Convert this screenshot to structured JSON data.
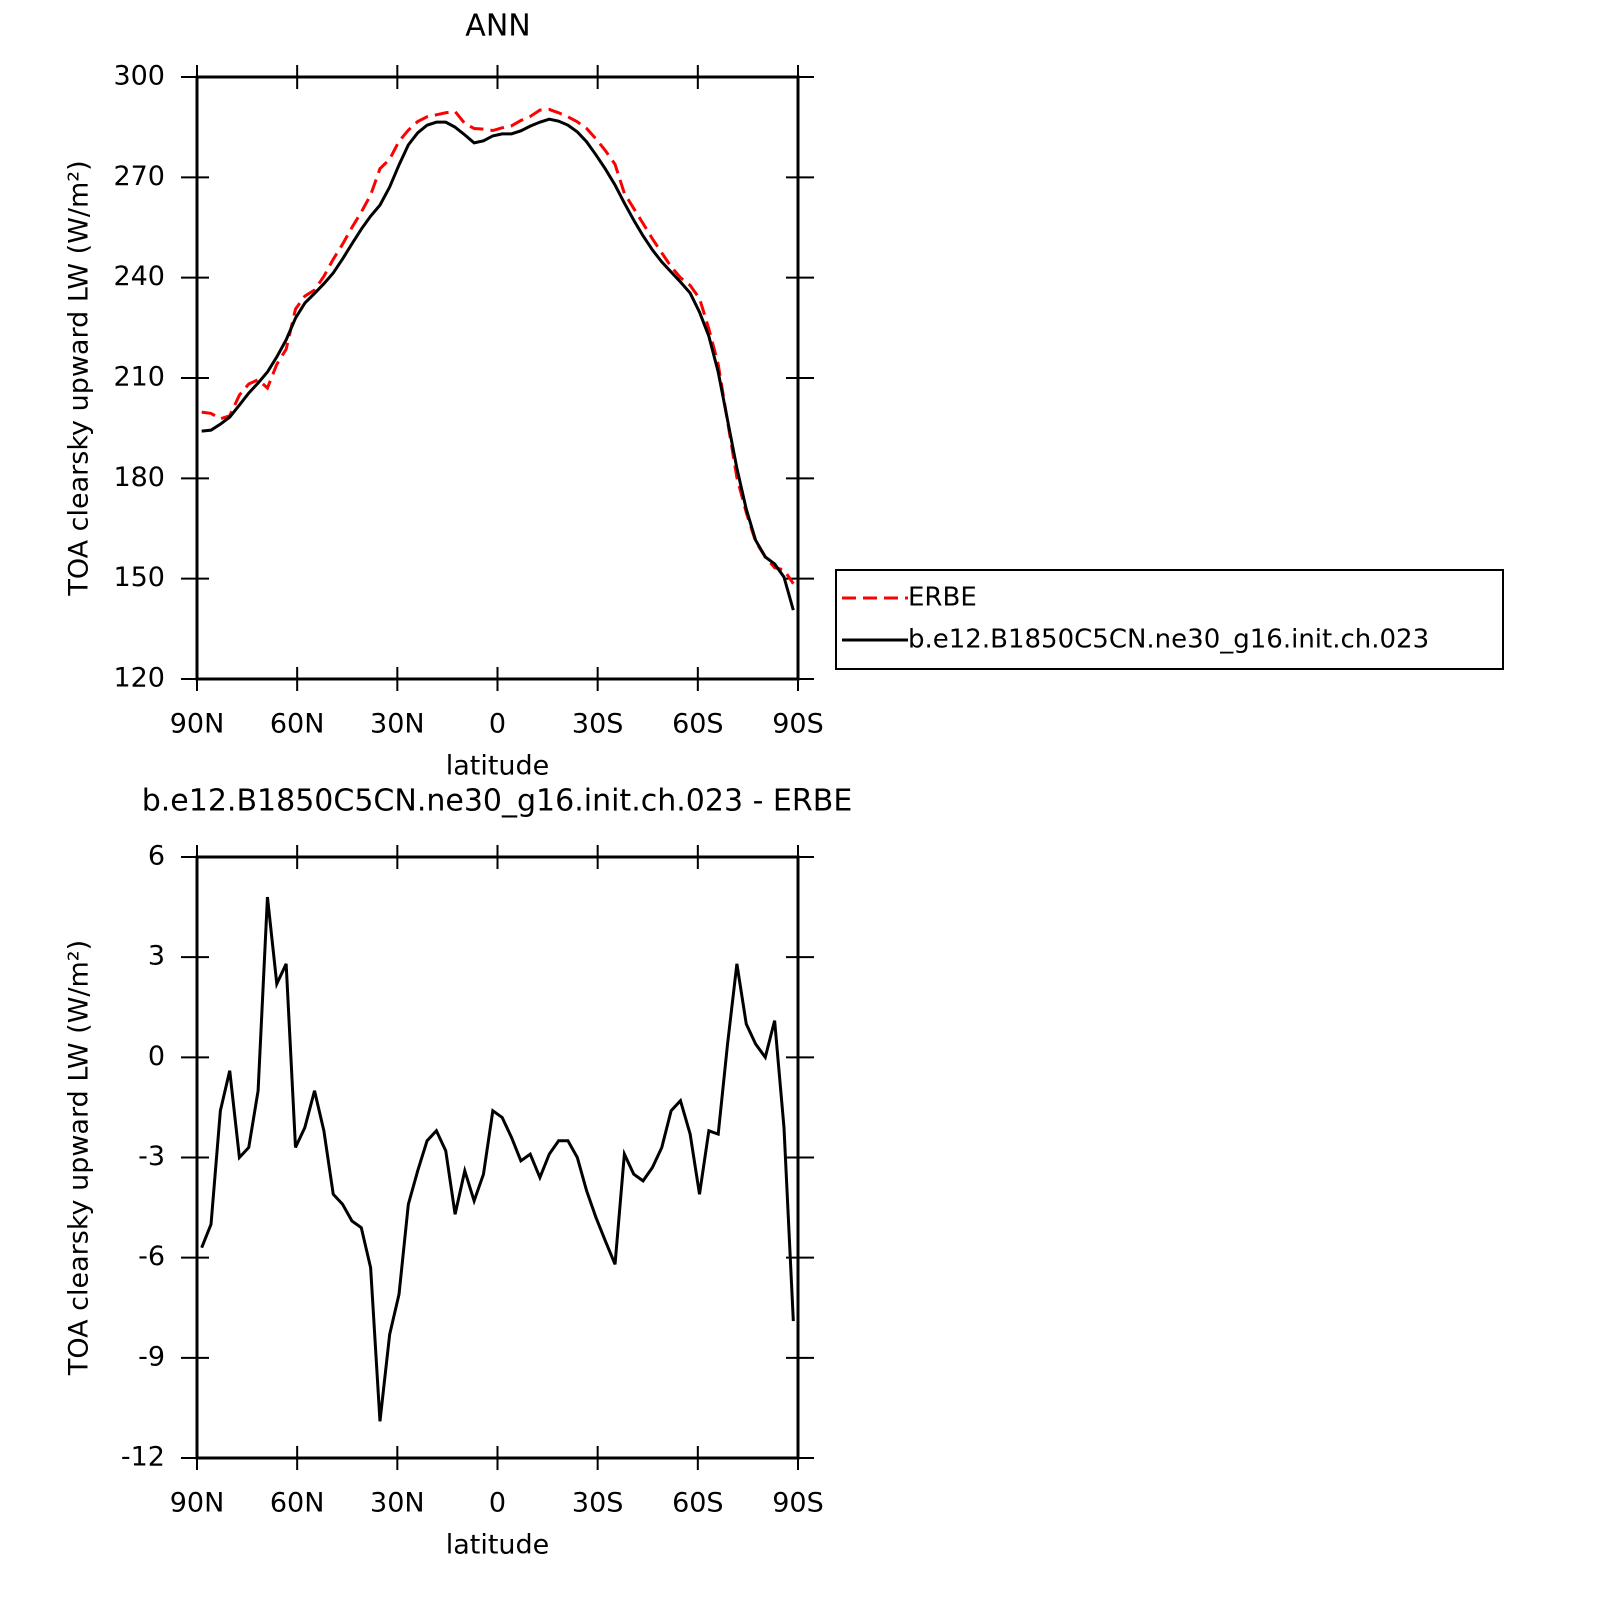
{
  "chart_data": [
    {
      "type": "line",
      "title": "ANN",
      "xlabel": "latitude",
      "ylabel": "TOA clearsky upward LW (W/m²)",
      "x": [
        88.6,
        85.8,
        83.0,
        80.2,
        77.3,
        74.5,
        71.7,
        68.9,
        66.1,
        63.3,
        60.5,
        57.7,
        54.8,
        52.0,
        49.2,
        46.4,
        43.6,
        40.8,
        38.0,
        35.2,
        32.3,
        29.5,
        26.7,
        23.9,
        21.1,
        18.3,
        15.5,
        12.7,
        9.8,
        7.0,
        4.2,
        1.4,
        -1.4,
        -4.2,
        -7.0,
        -9.8,
        -12.7,
        -15.5,
        -18.3,
        -21.1,
        -23.9,
        -26.7,
        -29.5,
        -32.3,
        -35.2,
        -38.0,
        -40.8,
        -43.6,
        -46.4,
        -49.2,
        -52.0,
        -54.8,
        -57.7,
        -60.5,
        -63.3,
        -66.1,
        -68.9,
        -71.7,
        -74.5,
        -77.3,
        -80.2,
        -83.0,
        -85.8,
        -88.6
      ],
      "xlim": [
        90,
        -90
      ],
      "xticks": [
        {
          "value": 90,
          "label": "90N"
        },
        {
          "value": 60,
          "label": "60N"
        },
        {
          "value": 30,
          "label": "30N"
        },
        0,
        {
          "value": -30,
          "label": "30S"
        },
        {
          "value": -60,
          "label": "60S"
        },
        {
          "value": -90,
          "label": "90S"
        }
      ],
      "ylim": [
        120,
        300
      ],
      "yticks": [
        120,
        150,
        180,
        210,
        240,
        270,
        300
      ],
      "legend": "right",
      "series": [
        {
          "name": "ERBE",
          "color": "#ff0000",
          "linestyle": "dashed",
          "values": [
            199.8,
            199.4,
            197.8,
            198.7,
            204.9,
            208.2,
            209.5,
            207.0,
            214.1,
            218.6,
            230.6,
            234.5,
            236.3,
            240.4,
            245.5,
            250.0,
            255.0,
            259.6,
            264.7,
            272.6,
            275.4,
            280.8,
            284.1,
            286.7,
            288.1,
            288.7,
            289.3,
            289.7,
            286.1,
            284.6,
            284.4,
            284.0,
            284.8,
            285.4,
            287.0,
            288.2,
            290.1,
            290.3,
            289.3,
            288.1,
            286.6,
            284.6,
            281.5,
            278.0,
            273.9,
            265.2,
            260.7,
            256.2,
            251.6,
            247.4,
            243.3,
            240.0,
            237.7,
            233.8,
            224.7,
            214.1,
            197.0,
            180.2,
            169.8,
            161.1,
            156.5,
            153.3,
            152.6,
            148.5
          ]
        },
        {
          "name": "b.e12.B1850C5CN.ne30_g16.init.ch.023",
          "color": "#000000",
          "linestyle": "solid",
          "values": [
            194.1,
            194.4,
            196.2,
            198.3,
            201.9,
            205.5,
            208.5,
            211.8,
            216.3,
            221.4,
            227.9,
            232.4,
            235.3,
            238.2,
            241.4,
            245.6,
            250.1,
            254.5,
            258.4,
            261.7,
            267.1,
            273.7,
            279.7,
            283.3,
            285.6,
            286.5,
            286.5,
            285.0,
            282.7,
            280.3,
            280.9,
            282.4,
            283.0,
            283.0,
            283.9,
            285.3,
            286.5,
            287.4,
            286.8,
            285.6,
            283.6,
            280.6,
            276.7,
            272.5,
            267.7,
            262.3,
            257.2,
            252.5,
            248.3,
            244.7,
            241.7,
            238.7,
            235.4,
            229.7,
            222.5,
            211.8,
            197.4,
            183.0,
            170.8,
            161.5,
            156.5,
            154.4,
            150.5,
            140.6
          ]
        }
      ]
    },
    {
      "type": "line",
      "title": "b.e12.B1850C5CN.ne30_g16.init.ch.023 - ERBE",
      "xlabel": "latitude",
      "ylabel": "TOA clearsky upward LW (W/m²)",
      "x": [
        88.6,
        85.8,
        83.0,
        80.2,
        77.3,
        74.5,
        71.7,
        68.9,
        66.1,
        63.3,
        60.5,
        57.7,
        54.8,
        52.0,
        49.2,
        46.4,
        43.6,
        40.8,
        38.0,
        35.2,
        32.3,
        29.5,
        26.7,
        23.9,
        21.1,
        18.3,
        15.5,
        12.7,
        9.8,
        7.0,
        4.2,
        1.4,
        -1.4,
        -4.2,
        -7.0,
        -9.8,
        -12.7,
        -15.5,
        -18.3,
        -21.1,
        -23.9,
        -26.7,
        -29.5,
        -32.3,
        -35.2,
        -38.0,
        -40.8,
        -43.6,
        -46.4,
        -49.2,
        -52.0,
        -54.8,
        -57.7,
        -60.5,
        -63.3,
        -66.1,
        -68.9,
        -71.7,
        -74.5,
        -77.3,
        -80.2,
        -83.0,
        -85.8,
        -88.6
      ],
      "xlim": [
        90,
        -90
      ],
      "xticks": [
        {
          "value": 90,
          "label": "90N"
        },
        {
          "value": 60,
          "label": "60N"
        },
        {
          "value": 30,
          "label": "30N"
        },
        0,
        {
          "value": -30,
          "label": "30S"
        },
        {
          "value": -60,
          "label": "60S"
        },
        {
          "value": -90,
          "label": "90S"
        }
      ],
      "ylim": [
        -12,
        6
      ],
      "yticks": [
        -12,
        -9,
        -6,
        -3,
        0,
        3,
        6
      ],
      "series": [
        {
          "color": "#000000",
          "linestyle": "solid",
          "values": [
            -5.7,
            -5.0,
            -1.6,
            -0.4,
            -3.0,
            -2.7,
            -1.0,
            4.8,
            2.2,
            2.8,
            -2.7,
            -2.1,
            -1.0,
            -2.2,
            -4.1,
            -4.4,
            -4.9,
            -5.1,
            -6.3,
            -10.9,
            -8.3,
            -7.1,
            -4.4,
            -3.4,
            -2.5,
            -2.2,
            -2.8,
            -4.7,
            -3.4,
            -4.3,
            -3.5,
            -1.6,
            -1.8,
            -2.4,
            -3.1,
            -2.9,
            -3.6,
            -2.9,
            -2.5,
            -2.5,
            -3.0,
            -4.0,
            -4.8,
            -5.5,
            -6.2,
            -2.9,
            -3.5,
            -3.7,
            -3.3,
            -2.7,
            -1.6,
            -1.3,
            -2.3,
            -4.1,
            -2.2,
            -2.3,
            0.4,
            2.8,
            1.0,
            0.4,
            0.0,
            1.1,
            -2.1,
            -7.9
          ]
        }
      ]
    }
  ]
}
